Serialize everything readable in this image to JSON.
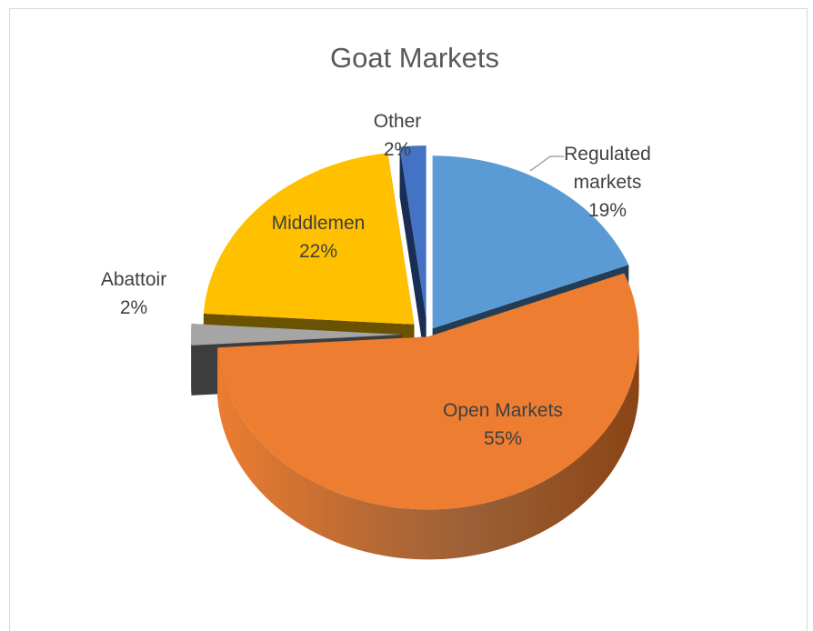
{
  "chart_data": {
    "type": "pie",
    "title": "Goat Markets",
    "slices": [
      {
        "name": "Regulated markets",
        "value": 19,
        "label_lines": [
          "Regulated",
          "markets",
          "19%"
        ],
        "color": "#5b9bd5",
        "side_color": "#223d55"
      },
      {
        "name": "Open Markets",
        "value": 55,
        "label_lines": [
          "Open Markets",
          "55%"
        ],
        "color": "#ed7d31",
        "side_color": "#8a4414"
      },
      {
        "name": "Abattoir",
        "value": 2,
        "label_lines": [
          "Abattoir",
          "2%"
        ],
        "color": "#a5a5a5",
        "side_color": "#3d3d3d"
      },
      {
        "name": "Middlemen",
        "value": 22,
        "label_lines": [
          "Middlemen",
          "22%"
        ],
        "color": "#ffc000",
        "side_color": "#6b5200"
      },
      {
        "name": "Other",
        "value": 2,
        "label_lines": [
          "Other",
          "2%"
        ],
        "color": "#4472c4",
        "side_color": "#1a2d55"
      }
    ],
    "exploded": true,
    "three_d": true
  }
}
